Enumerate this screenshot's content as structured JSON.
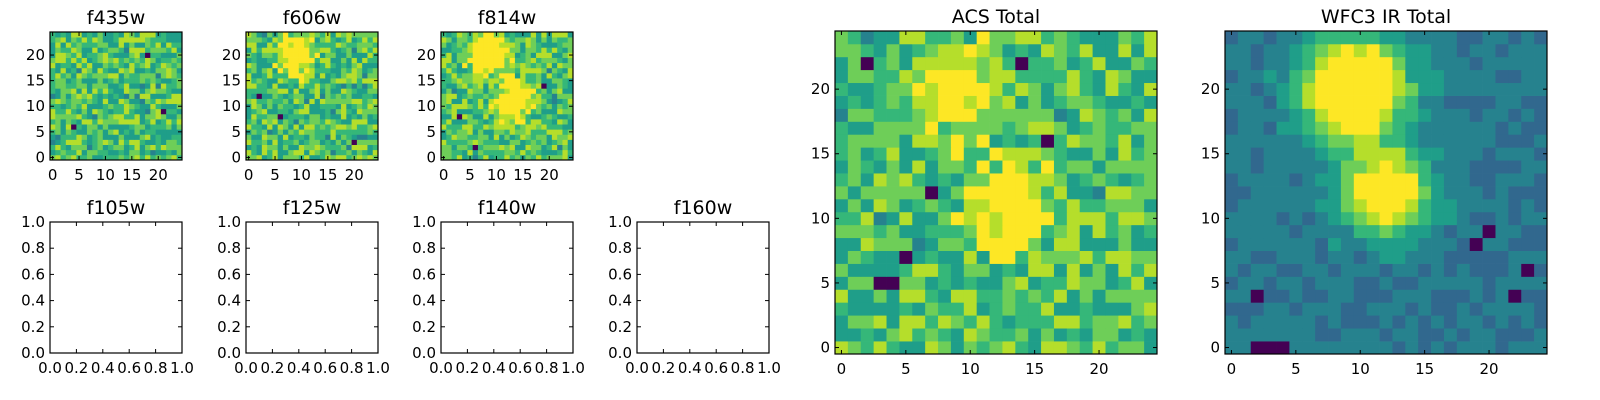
{
  "colors": {
    "viridis": [
      "#440154",
      "#482878",
      "#3e4989",
      "#31688e",
      "#26828e",
      "#1f9e89",
      "#35b779",
      "#6ece58",
      "#b5de2b",
      "#fde725"
    ],
    "axis": "#000000",
    "background": "#ffffff"
  },
  "chart_data": [
    {
      "type": "heatmap",
      "title": "f435w",
      "grid_size": [
        25,
        25
      ],
      "xticks": [
        0,
        5,
        10,
        15,
        20
      ],
      "yticks": [
        0,
        5,
        10,
        15,
        20
      ],
      "xlim": [
        -0.5,
        24.5
      ],
      "ylim": [
        -0.5,
        24.5
      ],
      "origin": "lower",
      "colormap": "viridis",
      "values": "noise field, mostly green/yellow with scattered dark pixels (not individually readable)",
      "features": {
        "bright": [],
        "dark": [
          [
            4,
            6
          ],
          [
            21,
            9
          ],
          [
            18,
            20
          ]
        ]
      }
    },
    {
      "type": "heatmap",
      "title": "f606w",
      "grid_size": [
        25,
        25
      ],
      "xticks": [
        0,
        5,
        10,
        15,
        20
      ],
      "yticks": [
        0,
        5,
        10,
        15,
        20
      ],
      "xlim": [
        -0.5,
        24.5
      ],
      "ylim": [
        -0.5,
        24.5
      ],
      "origin": "lower",
      "colormap": "viridis",
      "values": "noise field with faint bright clump near (9, 20)",
      "features": {
        "bright": [
          [
            9,
            20,
            2.5,
            0.5
          ]
        ],
        "dark": [
          [
            2,
            12
          ],
          [
            20,
            3
          ],
          [
            6,
            8
          ]
        ]
      }
    },
    {
      "type": "heatmap",
      "title": "f814w",
      "grid_size": [
        25,
        25
      ],
      "xticks": [
        0,
        5,
        10,
        15,
        20
      ],
      "yticks": [
        0,
        5,
        10,
        15,
        20
      ],
      "xlim": [
        -0.5,
        24.5
      ],
      "ylim": [
        -0.5,
        24.5
      ],
      "origin": "lower",
      "colormap": "viridis",
      "values": "noise field with bright clumps near (9, 20) and (13, 11)",
      "features": {
        "bright": [
          [
            9,
            20,
            2.5,
            0.6
          ],
          [
            13,
            11,
            2.5,
            0.5
          ]
        ],
        "dark": [
          [
            3,
            8
          ],
          [
            19,
            14
          ],
          [
            6,
            2
          ]
        ]
      }
    },
    {
      "type": "empty",
      "title": "f105w",
      "xticks": [
        "0.0",
        "0.2",
        "0.4",
        "0.6",
        "0.8",
        "1.0"
      ],
      "yticks": [
        "0.0",
        "0.2",
        "0.4",
        "0.6",
        "0.8",
        "1.0"
      ],
      "xlim": [
        0,
        1
      ],
      "ylim": [
        0,
        1
      ]
    },
    {
      "type": "empty",
      "title": "f125w",
      "xticks": [
        "0.0",
        "0.2",
        "0.4",
        "0.6",
        "0.8",
        "1.0"
      ],
      "yticks": [
        "0.0",
        "0.2",
        "0.4",
        "0.6",
        "0.8",
        "1.0"
      ],
      "xlim": [
        0,
        1
      ],
      "ylim": [
        0,
        1
      ]
    },
    {
      "type": "empty",
      "title": "f140w",
      "xticks": [
        "0.0",
        "0.2",
        "0.4",
        "0.6",
        "0.8",
        "1.0"
      ],
      "yticks": [
        "0.0",
        "0.2",
        "0.4",
        "0.6",
        "0.8",
        "1.0"
      ],
      "xlim": [
        0,
        1
      ],
      "ylim": [
        0,
        1
      ]
    },
    {
      "type": "empty",
      "title": "f160w",
      "xticks": [
        "0.0",
        "0.2",
        "0.4",
        "0.6",
        "0.8",
        "1.0"
      ],
      "yticks": [
        "0.0",
        "0.2",
        "0.4",
        "0.6",
        "0.8",
        "1.0"
      ],
      "xlim": [
        0,
        1
      ],
      "ylim": [
        0,
        1
      ]
    },
    {
      "type": "heatmap",
      "title": "ACS Total",
      "grid_size": [
        25,
        25
      ],
      "xticks": [
        0,
        5,
        10,
        15,
        20
      ],
      "yticks": [
        0,
        5,
        10,
        15,
        20
      ],
      "xlim": [
        -0.5,
        24.5
      ],
      "ylim": [
        -0.5,
        24.5
      ],
      "origin": "lower",
      "colormap": "viridis",
      "values": "green/yellow field, bright clumps near (9, 20) and (13, 11), few dark outliers",
      "features": {
        "bright": [
          [
            9,
            20,
            2.2,
            0.45
          ],
          [
            13,
            11,
            2.2,
            0.45
          ]
        ],
        "dark": [
          [
            2,
            22
          ],
          [
            14,
            22
          ],
          [
            16,
            16
          ],
          [
            7,
            12
          ],
          [
            5,
            7
          ],
          [
            3,
            5
          ],
          [
            4,
            5
          ]
        ]
      }
    },
    {
      "type": "heatmap",
      "title": "WFC3 IR Total",
      "grid_size": [
        25,
        25
      ],
      "xticks": [
        0,
        5,
        10,
        15,
        20
      ],
      "yticks": [
        0,
        5,
        10,
        15,
        20
      ],
      "xlim": [
        -0.5,
        24.5
      ],
      "ylim": [
        -0.5,
        24.5
      ],
      "origin": "lower",
      "colormap": "viridis",
      "values": "smooth teal/blue background, bright source peaking near (9.5, 20), secondary near (12, 12)",
      "features": {
        "bright": [
          [
            9.5,
            20,
            2.6,
            1.0
          ],
          [
            12,
            12,
            2.2,
            0.75
          ]
        ],
        "dark": [
          [
            2,
            0
          ],
          [
            3,
            0
          ],
          [
            4,
            0
          ],
          [
            19,
            8
          ],
          [
            20,
            9
          ],
          [
            23,
            6
          ],
          [
            22,
            4
          ],
          [
            2,
            4
          ]
        ]
      }
    }
  ]
}
